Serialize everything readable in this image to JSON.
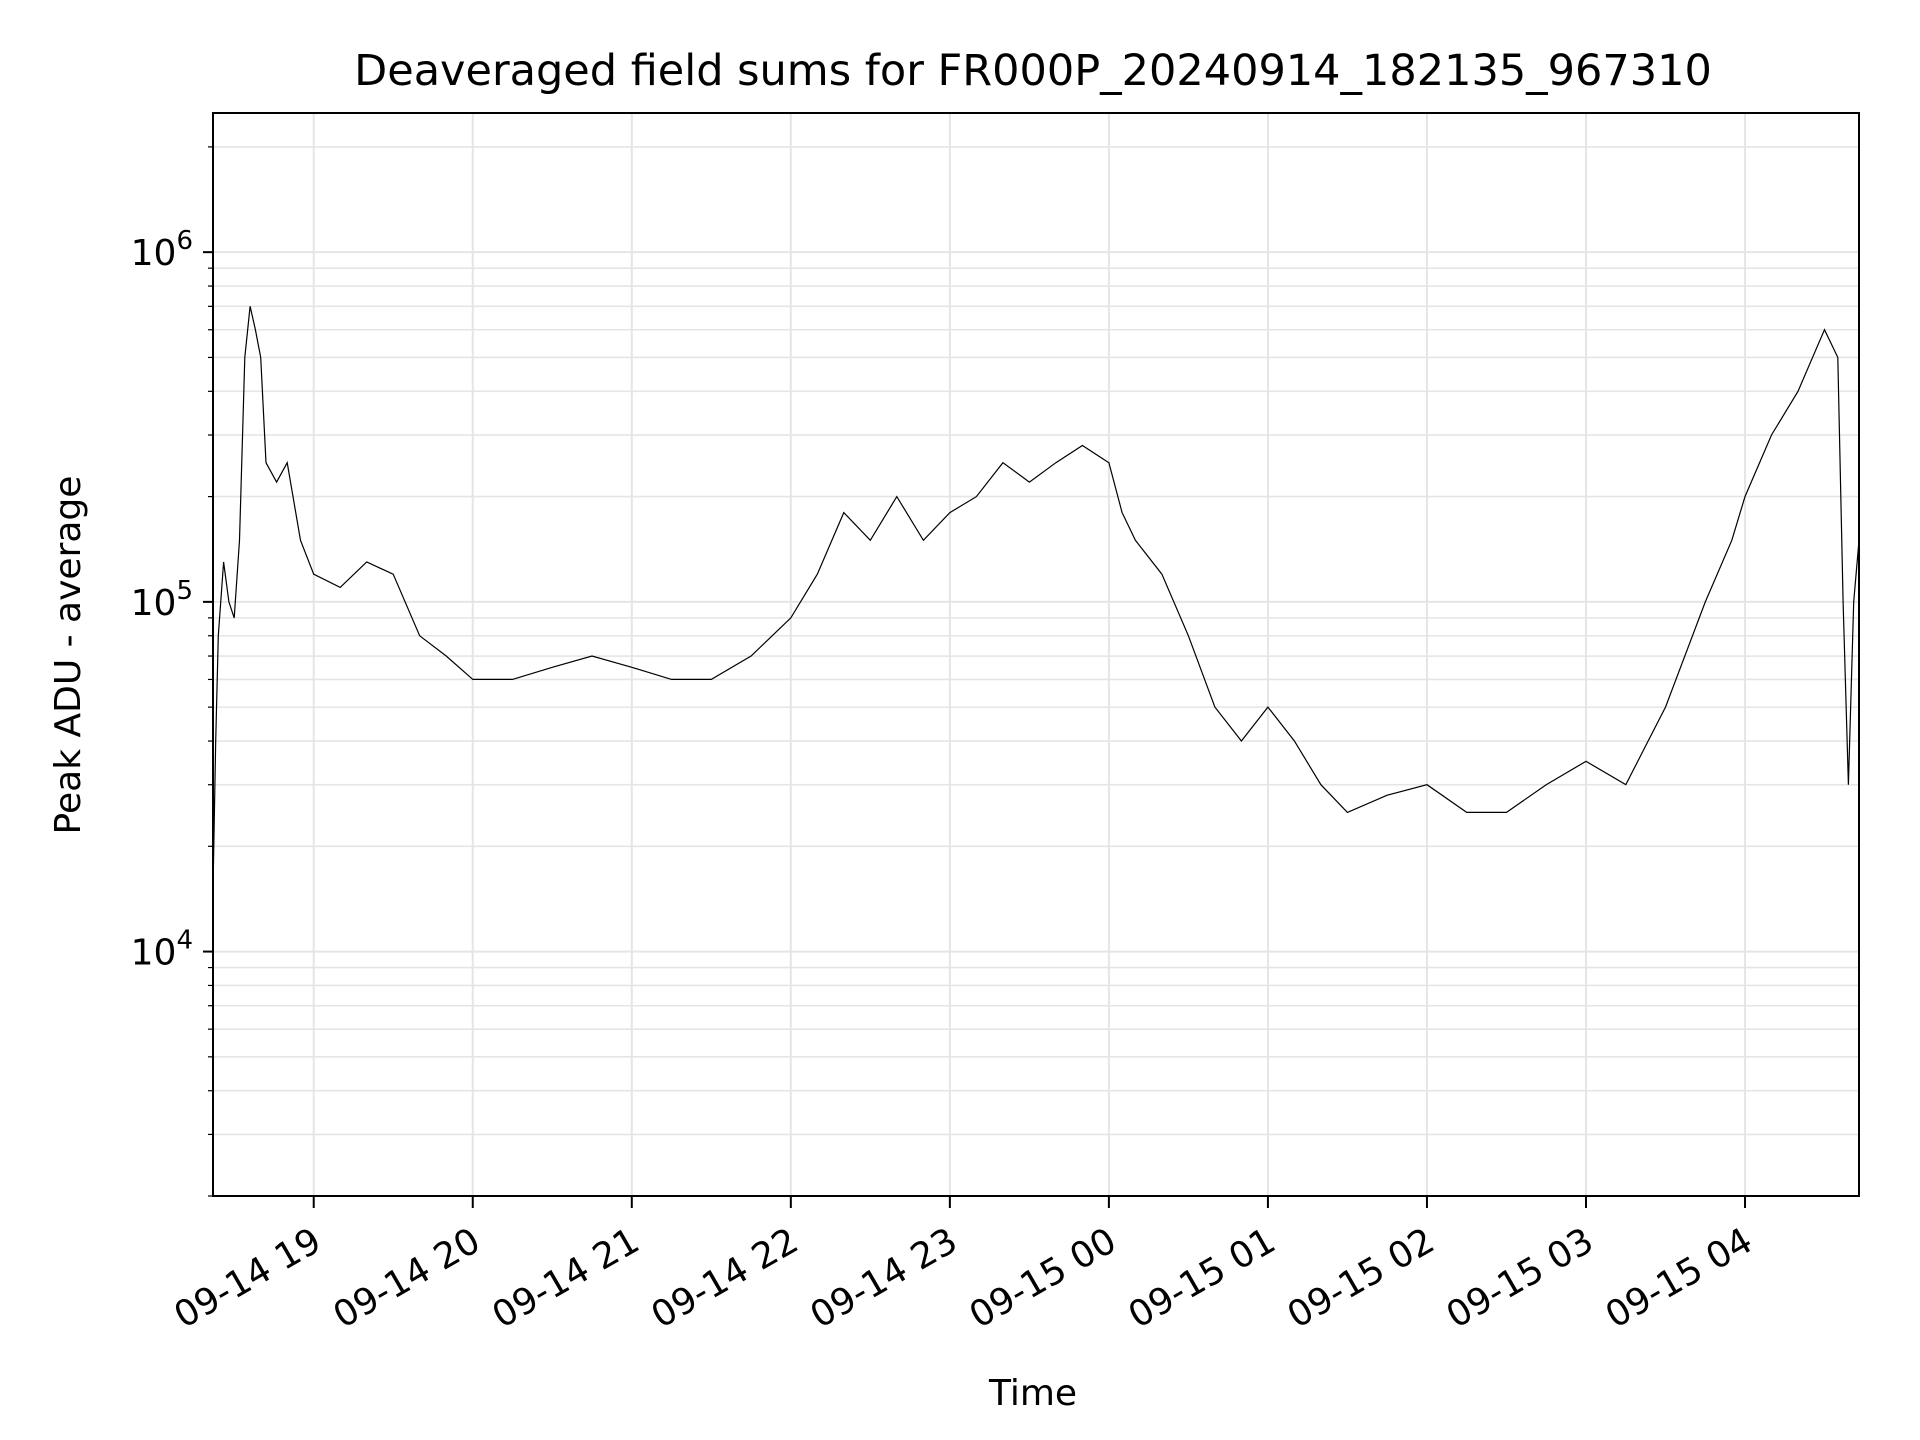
{
  "chart_data": {
    "type": "line",
    "title": "Deaveraged field sums for FR000P_20240914_182135_967310",
    "xlabel": "Time",
    "ylabel": "Peak ADU - average",
    "y_scale": "log",
    "ylim": [
      2000,
      2500000
    ],
    "xlim": [
      "2024-09-14 18:22",
      "2024-09-15 04:43"
    ],
    "grid": true,
    "line_color": "#000000",
    "grid_color": "#e5e5e5",
    "x_ticks": [
      {
        "t": "2024-09-14 19:00",
        "label": "09-14 19"
      },
      {
        "t": "2024-09-14 20:00",
        "label": "09-14 20"
      },
      {
        "t": "2024-09-14 21:00",
        "label": "09-14 21"
      },
      {
        "t": "2024-09-14 22:00",
        "label": "09-14 22"
      },
      {
        "t": "2024-09-14 23:00",
        "label": "09-14 23"
      },
      {
        "t": "2024-09-15 00:00",
        "label": "09-15 00"
      },
      {
        "t": "2024-09-15 01:00",
        "label": "09-15 01"
      },
      {
        "t": "2024-09-15 02:00",
        "label": "09-15 02"
      },
      {
        "t": "2024-09-15 03:00",
        "label": "09-15 03"
      },
      {
        "t": "2024-09-15 04:00",
        "label": "09-15 04"
      }
    ],
    "y_ticks": [
      {
        "value": 10000,
        "base": "10",
        "exp": "4"
      },
      {
        "value": 100000,
        "base": "10",
        "exp": "5"
      },
      {
        "value": 1000000,
        "base": "10",
        "exp": "6"
      }
    ],
    "series": [
      {
        "name": "",
        "points": [
          [
            "2024-09-14 18:22",
            15000
          ],
          [
            "2024-09-14 18:23",
            40000
          ],
          [
            "2024-09-14 18:24",
            80000
          ],
          [
            "2024-09-14 18:26",
            130000
          ],
          [
            "2024-09-14 18:28",
            100000
          ],
          [
            "2024-09-14 18:30",
            90000
          ],
          [
            "2024-09-14 18:32",
            150000
          ],
          [
            "2024-09-14 18:34",
            500000
          ],
          [
            "2024-09-14 18:36",
            700000
          ],
          [
            "2024-09-14 18:38",
            600000
          ],
          [
            "2024-09-14 18:40",
            500000
          ],
          [
            "2024-09-14 18:42",
            250000
          ],
          [
            "2024-09-14 18:46",
            220000
          ],
          [
            "2024-09-14 18:50",
            250000
          ],
          [
            "2024-09-14 18:55",
            150000
          ],
          [
            "2024-09-14 19:00",
            120000
          ],
          [
            "2024-09-14 19:10",
            110000
          ],
          [
            "2024-09-14 19:20",
            130000
          ],
          [
            "2024-09-14 19:30",
            120000
          ],
          [
            "2024-09-14 19:40",
            80000
          ],
          [
            "2024-09-14 19:50",
            70000
          ],
          [
            "2024-09-14 20:00",
            60000
          ],
          [
            "2024-09-14 20:15",
            60000
          ],
          [
            "2024-09-14 20:30",
            65000
          ],
          [
            "2024-09-14 20:45",
            70000
          ],
          [
            "2024-09-14 21:00",
            65000
          ],
          [
            "2024-09-14 21:15",
            60000
          ],
          [
            "2024-09-14 21:30",
            60000
          ],
          [
            "2024-09-14 21:45",
            70000
          ],
          [
            "2024-09-14 22:00",
            90000
          ],
          [
            "2024-09-14 22:10",
            120000
          ],
          [
            "2024-09-14 22:20",
            180000
          ],
          [
            "2024-09-14 22:30",
            150000
          ],
          [
            "2024-09-14 22:40",
            200000
          ],
          [
            "2024-09-14 22:50",
            150000
          ],
          [
            "2024-09-14 23:00",
            180000
          ],
          [
            "2024-09-14 23:10",
            200000
          ],
          [
            "2024-09-14 23:20",
            250000
          ],
          [
            "2024-09-14 23:30",
            220000
          ],
          [
            "2024-09-14 23:40",
            250000
          ],
          [
            "2024-09-14 23:50",
            280000
          ],
          [
            "2024-09-15 00:00",
            250000
          ],
          [
            "2024-09-15 00:05",
            180000
          ],
          [
            "2024-09-15 00:10",
            150000
          ],
          [
            "2024-09-15 00:20",
            120000
          ],
          [
            "2024-09-15 00:30",
            80000
          ],
          [
            "2024-09-15 00:40",
            50000
          ],
          [
            "2024-09-15 00:50",
            40000
          ],
          [
            "2024-09-15 01:00",
            50000
          ],
          [
            "2024-09-15 01:10",
            40000
          ],
          [
            "2024-09-15 01:20",
            30000
          ],
          [
            "2024-09-15 01:30",
            25000
          ],
          [
            "2024-09-15 01:45",
            28000
          ],
          [
            "2024-09-15 02:00",
            30000
          ],
          [
            "2024-09-15 02:15",
            25000
          ],
          [
            "2024-09-15 02:30",
            25000
          ],
          [
            "2024-09-15 02:45",
            30000
          ],
          [
            "2024-09-15 03:00",
            35000
          ],
          [
            "2024-09-15 03:15",
            30000
          ],
          [
            "2024-09-15 03:30",
            50000
          ],
          [
            "2024-09-15 03:45",
            100000
          ],
          [
            "2024-09-15 03:55",
            150000
          ],
          [
            "2024-09-15 04:00",
            200000
          ],
          [
            "2024-09-15 04:10",
            300000
          ],
          [
            "2024-09-15 04:20",
            400000
          ],
          [
            "2024-09-15 04:30",
            600000
          ],
          [
            "2024-09-15 04:35",
            500000
          ],
          [
            "2024-09-15 04:37",
            100000
          ],
          [
            "2024-09-15 04:39",
            30000
          ],
          [
            "2024-09-15 04:41",
            100000
          ],
          [
            "2024-09-15 04:43",
            150000
          ]
        ]
      }
    ]
  }
}
